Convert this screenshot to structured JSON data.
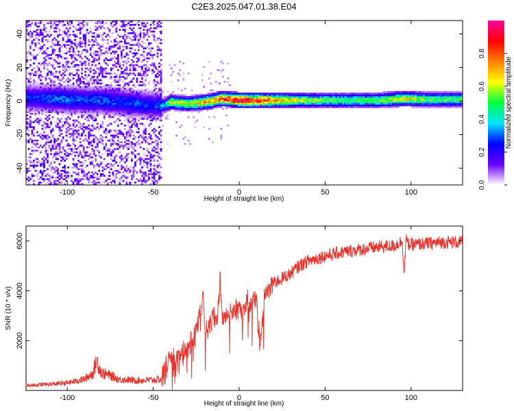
{
  "title": "C2E3.2025.047.01.38.E04",
  "chart_data": [
    {
      "type": "heatmap",
      "xlabel": "Height of straight line (km)",
      "ylabel": "Frequency (Hz)",
      "xlim": [
        -124,
        130
      ],
      "ylim": [
        -50,
        48
      ],
      "xticks": [
        -100,
        -50,
        0,
        50,
        100
      ],
      "yticks": [
        -40,
        -20,
        0,
        20,
        40
      ],
      "colorbar": {
        "label": "Normalized spectral amplitude",
        "range": [
          0,
          1
        ],
        "ticks": [
          0.0,
          0.2,
          0.4,
          0.6,
          0.8
        ],
        "tick_labels": [
          "0.0",
          "0.2",
          "0.4",
          "0.6",
          "0.8"
        ],
        "colormap": [
          "#ffffff",
          "#6a00ff",
          "#0000ff",
          "#00e5ff",
          "#00ff40",
          "#ffff00",
          "#ff7f00",
          "#ff0000",
          "#ff00a0"
        ]
      },
      "noise_region": {
        "x": [
          -124,
          -45
        ],
        "amplitude": 0.15
      },
      "ridge": [
        {
          "x": -120,
          "f": 1.5,
          "amp": 0.25
        },
        {
          "x": -110,
          "f": 1.0,
          "amp": 0.3
        },
        {
          "x": -100,
          "f": 0.5,
          "amp": 0.3
        },
        {
          "x": -90,
          "f": 0.0,
          "amp": 0.28
        },
        {
          "x": -80,
          "f": 0.0,
          "amp": 0.3
        },
        {
          "x": -70,
          "f": -1.0,
          "amp": 0.28
        },
        {
          "x": -60,
          "f": -2.0,
          "amp": 0.28
        },
        {
          "x": -50,
          "f": -3.0,
          "amp": 0.25
        },
        {
          "x": -44,
          "f": -3.0,
          "amp": 0.35
        },
        {
          "x": -40,
          "f": -1.0,
          "amp": 0.62
        },
        {
          "x": -30,
          "f": -2.0,
          "amp": 0.6
        },
        {
          "x": -20,
          "f": -1.0,
          "amp": 0.7
        },
        {
          "x": -10,
          "f": 1.0,
          "amp": 0.8
        },
        {
          "x": 0,
          "f": 0.0,
          "amp": 0.95
        },
        {
          "x": 10,
          "f": 0.0,
          "amp": 0.9
        },
        {
          "x": 20,
          "f": 0.0,
          "amp": 0.75
        },
        {
          "x": 30,
          "f": 0.0,
          "amp": 0.65
        },
        {
          "x": 40,
          "f": 0.0,
          "amp": 0.55
        },
        {
          "x": 60,
          "f": 0.0,
          "amp": 0.5
        },
        {
          "x": 80,
          "f": 0.0,
          "amp": 0.52
        },
        {
          "x": 95,
          "f": 1.0,
          "amp": 0.65
        },
        {
          "x": 110,
          "f": 0.5,
          "amp": 0.52
        },
        {
          "x": 130,
          "f": 0.5,
          "amp": 0.5
        }
      ]
    },
    {
      "type": "line",
      "xlabel": "Height of straight line (km)",
      "ylabel": "SNR (10 * v/v)",
      "xlim": [
        -124,
        130
      ],
      "ylim": [
        0,
        6600
      ],
      "xticks": [
        -100,
        -50,
        0,
        50,
        100
      ],
      "yticks": [
        2000,
        4000,
        6000
      ],
      "color": "#e8322c",
      "x": [
        -124,
        -110,
        -100,
        -90,
        -85,
        -83,
        -80,
        -75,
        -70,
        -60,
        -50,
        -45,
        -43,
        -40,
        -35,
        -30,
        -25,
        -21,
        -20,
        -18,
        -15,
        -12,
        -11,
        -10,
        -8,
        -5,
        0,
        5,
        10,
        12,
        15,
        20,
        25,
        30,
        35,
        40,
        45,
        50,
        60,
        70,
        80,
        90,
        95,
        96,
        97,
        98,
        100,
        110,
        120,
        130
      ],
      "values": [
        200,
        250,
        300,
        450,
        700,
        1200,
        700,
        600,
        450,
        400,
        420,
        450,
        900,
        1100,
        1300,
        1800,
        2300,
        3800,
        2500,
        2700,
        2800,
        3300,
        4600,
        3000,
        2900,
        3200,
        3300,
        3500,
        3700,
        1900,
        3800,
        4300,
        4500,
        4700,
        5000,
        5200,
        5300,
        5400,
        5550,
        5650,
        5750,
        5800,
        6000,
        4600,
        6100,
        5900,
        5850,
        5900,
        5950,
        5950
      ],
      "noise": 380
    }
  ]
}
